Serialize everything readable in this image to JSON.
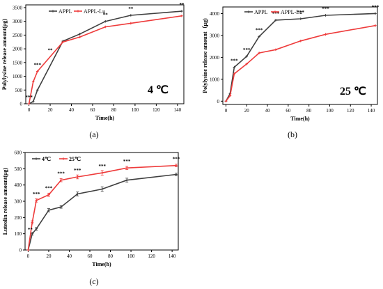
{
  "colors": {
    "series1": "#3f3f3f",
    "series2": "#ee3b3b"
  },
  "chart_data": [
    {
      "type": "line",
      "caption": "(a)",
      "annotation": "4 ℃",
      "xlabel": "Time(h)",
      "ylabel": "Polylysine release amount(μg)",
      "xlim": [
        -3,
        146
      ],
      "ylim": [
        0,
        3600
      ],
      "xticks": [
        0,
        20,
        40,
        60,
        80,
        100,
        120,
        140
      ],
      "yticks": [
        0,
        500,
        1000,
        1500,
        2000,
        2500,
        3000,
        3500
      ],
      "legend_position": "top-left",
      "legend_bold": false,
      "error_bars": false,
      "series": [
        {
          "name": "APPL",
          "x": [
            0,
            4,
            8,
            32,
            48,
            72,
            96,
            144
          ],
          "values": [
            0,
            80,
            500,
            2280,
            2540,
            3000,
            3220,
            3370
          ]
        },
        {
          "name": "APPL-Lu",
          "x": [
            0,
            4,
            8,
            32,
            48,
            72,
            96,
            144
          ],
          "values": [
            0,
            800,
            1180,
            2250,
            2430,
            2800,
            2930,
            3200
          ]
        }
      ],
      "significance": [
        {
          "x": 0,
          "label": "***"
        },
        {
          "x": 8,
          "label": "***"
        },
        {
          "x": 20,
          "label": "**"
        },
        {
          "x": 72,
          "label": "**"
        },
        {
          "x": 96,
          "label": "**"
        },
        {
          "x": 144,
          "label": "**"
        }
      ]
    },
    {
      "type": "line",
      "caption": "(b)",
      "annotation": "25 ℃",
      "xlabel": "Time(h)",
      "ylabel": "Polylysine release amount（μg)",
      "xlim": [
        -3,
        146
      ],
      "ylim": [
        -150,
        4300
      ],
      "xticks": [
        0,
        20,
        40,
        60,
        80,
        100,
        120,
        140
      ],
      "yticks": [
        0,
        1000,
        2000,
        3000,
        4000
      ],
      "legend_position": "top-left",
      "legend_bold": false,
      "error_bars": false,
      "series": [
        {
          "name": "APPL",
          "x": [
            0,
            4,
            8,
            20,
            32,
            48,
            72,
            96,
            144
          ],
          "values": [
            0,
            350,
            1550,
            2050,
            2950,
            3700,
            3760,
            3920,
            4000
          ]
        },
        {
          "name": "APPL-Lu",
          "x": [
            0,
            4,
            8,
            20,
            32,
            48,
            72,
            96,
            144
          ],
          "values": [
            0,
            250,
            1250,
            1700,
            2200,
            2350,
            2750,
            3050,
            3450
          ]
        }
      ],
      "significance": [
        {
          "x": 8,
          "label": "***"
        },
        {
          "x": 20,
          "label": "***"
        },
        {
          "x": 32,
          "label": "***"
        },
        {
          "x": 48,
          "label": "***"
        },
        {
          "x": 72,
          "label": "***"
        },
        {
          "x": 96,
          "label": "***"
        },
        {
          "x": 144,
          "label": "***"
        }
      ]
    },
    {
      "type": "line",
      "caption": "(c)",
      "annotation": "",
      "xlabel": "Time(h)",
      "ylabel": "Luteolin release amount(μg)",
      "xlim": [
        -3,
        146
      ],
      "ylim": [
        0,
        600
      ],
      "xticks": [
        0,
        20,
        40,
        60,
        80,
        100,
        120,
        140
      ],
      "yticks": [
        0,
        100,
        200,
        300,
        400,
        500,
        600
      ],
      "legend_position": "top-left",
      "legend_bold": true,
      "error_bars": true,
      "series": [
        {
          "name": "4℃",
          "x": [
            0,
            4,
            8,
            20,
            32,
            48,
            72,
            96,
            144
          ],
          "values": [
            0,
            100,
            130,
            245,
            265,
            345,
            375,
            430,
            465
          ],
          "errors": [
            0,
            8,
            8,
            10,
            8,
            12,
            14,
            12,
            8
          ]
        },
        {
          "name": "25℃",
          "x": [
            0,
            4,
            8,
            20,
            32,
            48,
            72,
            96,
            144
          ],
          "values": [
            0,
            170,
            305,
            340,
            430,
            450,
            475,
            505,
            520
          ],
          "errors": [
            0,
            10,
            10,
            10,
            10,
            12,
            14,
            10,
            8
          ]
        }
      ],
      "significance": [
        {
          "x": 2,
          "label": "**"
        },
        {
          "x": 8,
          "label": "***"
        },
        {
          "x": 20,
          "label": "***"
        },
        {
          "x": 32,
          "label": "***"
        },
        {
          "x": 48,
          "label": "***"
        },
        {
          "x": 72,
          "label": "***"
        },
        {
          "x": 96,
          "label": "***"
        },
        {
          "x": 144,
          "label": "***"
        }
      ]
    }
  ]
}
